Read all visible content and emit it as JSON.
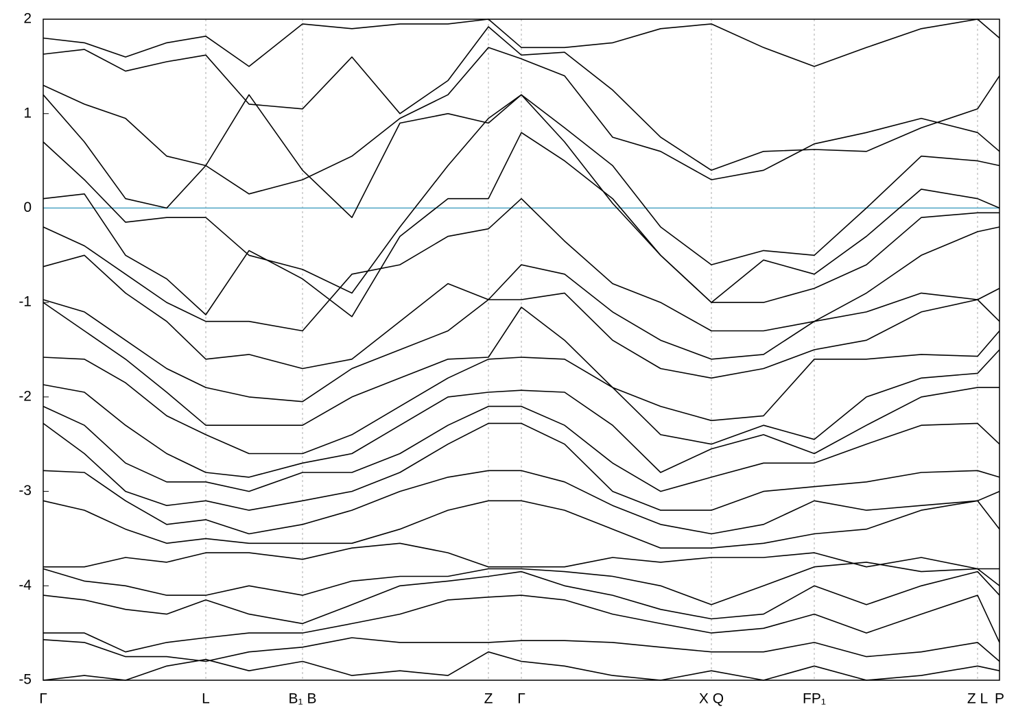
{
  "chart_data": {
    "type": "line",
    "x": [
      0,
      60,
      120,
      180,
      237,
      300,
      378,
      450,
      520,
      590,
      649,
      697,
      760,
      830,
      900,
      974,
      1050,
      1124,
      1200,
      1280,
      1362,
      1394
    ],
    "xlim": [
      0,
      1394
    ],
    "xticks": [
      {
        "value": 0,
        "label": "Γ"
      },
      {
        "value": 237,
        "label": "L"
      },
      {
        "value": 378,
        "label": "B₁ B"
      },
      {
        "value": 649,
        "label": "Z"
      },
      {
        "value": 697,
        "label": "Γ"
      },
      {
        "value": 974,
        "label": "X Q"
      },
      {
        "value": 1124,
        "label": "FP₁"
      },
      {
        "value": 1362,
        "label": "Z L"
      },
      {
        "value": 1394,
        "label": "P"
      }
    ],
    "ylim": [
      -5,
      2
    ],
    "yticks": [
      -5,
      -4,
      -3,
      -2,
      -1,
      0,
      1,
      2
    ],
    "grid": "x",
    "color": "#000000",
    "reference_line": {
      "value": 0,
      "color": "#4ba3c3"
    },
    "series": [
      {
        "values": [
          1.8,
          1.75,
          1.6,
          1.75,
          1.82,
          1.5,
          1.95,
          1.9,
          1.95,
          1.95,
          2.0,
          1.7,
          1.7,
          1.75,
          1.9,
          1.95,
          1.7,
          1.5,
          1.7,
          1.9,
          2.0,
          1.8
        ]
      },
      {
        "values": [
          1.63,
          1.68,
          1.45,
          1.55,
          1.62,
          1.1,
          1.05,
          1.6,
          1.0,
          1.35,
          1.92,
          1.62,
          1.65,
          1.25,
          0.75,
          0.4,
          0.6,
          0.62,
          0.6,
          0.85,
          1.05,
          1.4
        ]
      },
      {
        "values": [
          1.3,
          1.1,
          0.95,
          0.55,
          0.45,
          0.15,
          0.3,
          0.55,
          0.95,
          1.2,
          1.7,
          1.58,
          1.4,
          0.75,
          0.6,
          0.3,
          0.4,
          0.68,
          0.8,
          0.95,
          0.8,
          0.6
        ]
      },
      {
        "values": [
          1.2,
          0.7,
          0.1,
          0.0,
          0.45,
          1.2,
          0.4,
          -0.1,
          0.9,
          1.0,
          0.9,
          1.2,
          0.85,
          0.45,
          -0.2,
          -0.6,
          -0.45,
          -0.5,
          0.0,
          0.55,
          0.5,
          0.45
        ]
      },
      {
        "values": [
          0.7,
          0.3,
          -0.15,
          -0.1,
          -0.1,
          -0.5,
          -0.65,
          -0.9,
          -0.2,
          0.45,
          0.95,
          1.2,
          0.7,
          0.05,
          -0.5,
          -1.0,
          -0.55,
          -0.7,
          -0.3,
          0.2,
          0.1,
          0.0
        ]
      },
      {
        "values": [
          0.1,
          0.15,
          -0.5,
          -0.75,
          -1.13,
          -0.45,
          -0.75,
          -1.15,
          -0.3,
          0.1,
          0.1,
          0.8,
          0.5,
          0.1,
          -0.5,
          -1.0,
          -1.0,
          -0.85,
          -0.6,
          -0.1,
          -0.05,
          -0.05
        ]
      },
      {
        "values": [
          -0.2,
          -0.4,
          -0.7,
          -1.0,
          -1.2,
          -1.2,
          -1.3,
          -0.7,
          -0.6,
          -0.3,
          -0.22,
          0.1,
          -0.35,
          -0.8,
          -1.0,
          -1.3,
          -1.3,
          -1.2,
          -0.9,
          -0.5,
          -0.25,
          -0.2
        ]
      },
      {
        "values": [
          -0.62,
          -0.5,
          -0.9,
          -1.2,
          -1.6,
          -1.55,
          -1.7,
          -1.6,
          -1.2,
          -0.8,
          -0.97,
          -0.6,
          -0.7,
          -1.1,
          -1.4,
          -1.6,
          -1.55,
          -1.2,
          -1.1,
          -0.9,
          -0.97,
          -0.85
        ]
      },
      {
        "values": [
          -0.97,
          -1.1,
          -1.4,
          -1.7,
          -1.9,
          -2.0,
          -2.05,
          -1.7,
          -1.5,
          -1.3,
          -0.97,
          -0.97,
          -0.9,
          -1.4,
          -1.7,
          -1.8,
          -1.7,
          -1.5,
          -1.4,
          -1.1,
          -0.97,
          -1.2
        ]
      },
      {
        "values": [
          -1.0,
          -1.3,
          -1.6,
          -1.95,
          -2.3,
          -2.3,
          -2.3,
          -2.0,
          -1.8,
          -1.6,
          -1.58,
          -1.05,
          -1.4,
          -1.9,
          -2.1,
          -2.25,
          -2.2,
          -1.6,
          -1.6,
          -1.55,
          -1.57,
          -1.3
        ]
      },
      {
        "values": [
          -1.58,
          -1.6,
          -1.85,
          -2.2,
          -2.4,
          -2.6,
          -2.6,
          -2.4,
          -2.1,
          -1.8,
          -1.6,
          -1.58,
          -1.6,
          -1.9,
          -2.4,
          -2.5,
          -2.3,
          -2.45,
          -2.0,
          -1.8,
          -1.75,
          -1.5
        ]
      },
      {
        "values": [
          -1.87,
          -1.95,
          -2.3,
          -2.6,
          -2.8,
          -2.85,
          -2.7,
          -2.6,
          -2.3,
          -2.0,
          -1.95,
          -1.93,
          -1.95,
          -2.3,
          -2.8,
          -2.55,
          -2.4,
          -2.6,
          -2.3,
          -2.0,
          -1.9,
          -1.9
        ]
      },
      {
        "values": [
          -2.1,
          -2.3,
          -2.7,
          -2.9,
          -2.9,
          -3.0,
          -2.8,
          -2.8,
          -2.6,
          -2.3,
          -2.1,
          -2.1,
          -2.3,
          -2.7,
          -3.0,
          -2.85,
          -2.7,
          -2.7,
          -2.5,
          -2.3,
          -2.28,
          -2.5
        ]
      },
      {
        "values": [
          -2.28,
          -2.6,
          -3.0,
          -3.15,
          -3.1,
          -3.2,
          -3.1,
          -3.0,
          -2.8,
          -2.5,
          -2.28,
          -2.28,
          -2.5,
          -3.0,
          -3.2,
          -3.2,
          -3.0,
          -2.95,
          -2.9,
          -2.8,
          -2.78,
          -2.85
        ]
      },
      {
        "values": [
          -2.78,
          -2.8,
          -3.1,
          -3.35,
          -3.3,
          -3.45,
          -3.35,
          -3.2,
          -3.0,
          -2.85,
          -2.78,
          -2.78,
          -2.9,
          -3.15,
          -3.35,
          -3.45,
          -3.35,
          -3.1,
          -3.2,
          -3.15,
          -3.1,
          -3.0
        ]
      },
      {
        "values": [
          -3.1,
          -3.2,
          -3.4,
          -3.55,
          -3.5,
          -3.55,
          -3.55,
          -3.55,
          -3.4,
          -3.2,
          -3.1,
          -3.1,
          -3.2,
          -3.4,
          -3.6,
          -3.6,
          -3.55,
          -3.45,
          -3.4,
          -3.2,
          -3.1,
          -3.4
        ]
      },
      {
        "values": [
          -3.8,
          -3.8,
          -3.7,
          -3.75,
          -3.65,
          -3.65,
          -3.72,
          -3.6,
          -3.55,
          -3.65,
          -3.8,
          -3.8,
          -3.8,
          -3.7,
          -3.75,
          -3.7,
          -3.7,
          -3.65,
          -3.8,
          -3.7,
          -3.82,
          -3.82
        ]
      },
      {
        "values": [
          -3.82,
          -3.95,
          -4.0,
          -4.1,
          -4.1,
          -4.0,
          -4.1,
          -3.95,
          -3.9,
          -3.9,
          -3.82,
          -3.82,
          -3.85,
          -3.9,
          -4.0,
          -4.2,
          -4.0,
          -3.8,
          -3.75,
          -3.85,
          -3.82,
          -4.0
        ]
      },
      {
        "values": [
          -4.1,
          -4.15,
          -4.25,
          -4.3,
          -4.15,
          -4.3,
          -4.4,
          -4.2,
          -4.0,
          -3.95,
          -3.9,
          -3.85,
          -4.0,
          -4.1,
          -4.25,
          -4.35,
          -4.3,
          -4.0,
          -4.2,
          -4.0,
          -3.85,
          -4.1
        ]
      },
      {
        "values": [
          -4.5,
          -4.5,
          -4.7,
          -4.6,
          -4.55,
          -4.5,
          -4.5,
          -4.4,
          -4.3,
          -4.15,
          -4.12,
          -4.1,
          -4.15,
          -4.3,
          -4.4,
          -4.5,
          -4.45,
          -4.3,
          -4.5,
          -4.3,
          -4.1,
          -4.6
        ]
      },
      {
        "values": [
          -4.57,
          -4.6,
          -4.75,
          -4.75,
          -4.8,
          -4.7,
          -4.65,
          -4.55,
          -4.6,
          -4.6,
          -4.6,
          -4.58,
          -4.58,
          -4.6,
          -4.65,
          -4.7,
          -4.7,
          -4.6,
          -4.75,
          -4.7,
          -4.6,
          -4.8
        ]
      },
      {
        "values": [
          -5.0,
          -4.95,
          -5.0,
          -4.85,
          -4.78,
          -4.9,
          -4.8,
          -4.95,
          -4.9,
          -4.95,
          -4.7,
          -4.8,
          -4.85,
          -4.95,
          -5.0,
          -4.9,
          -5.0,
          -4.85,
          -5.0,
          -4.95,
          -4.85,
          -4.9
        ]
      }
    ]
  }
}
